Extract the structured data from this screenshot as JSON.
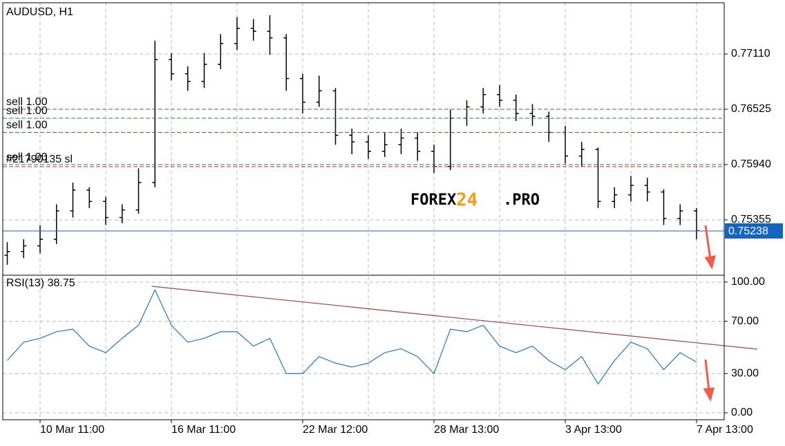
{
  "chart_data": [
    {
      "type": "ohlc",
      "title": "AUDUSD, H1",
      "color": "#000000",
      "categories": [
        null,
        null,
        "10 Mar 11:00",
        null,
        null,
        null,
        null,
        null,
        null,
        null,
        "16 Mar 11:00",
        null,
        null,
        null,
        null,
        null,
        null,
        null,
        "22 Mar 12:00",
        null,
        null,
        null,
        null,
        null,
        null,
        null,
        "28 Mar 13:00",
        null,
        null,
        null,
        null,
        null,
        null,
        null,
        "3 Apr 13:00",
        null,
        null,
        null,
        null,
        null,
        null,
        null,
        "7 Apr 13:00"
      ],
      "open": [
        0.7498,
        0.7502,
        0.7508,
        0.7515,
        0.7545,
        0.7567,
        0.7555,
        0.7538,
        0.7546,
        0.7575,
        0.7705,
        0.769,
        0.7682,
        0.77,
        0.7722,
        0.7738,
        0.7735,
        0.7728,
        0.7685,
        0.766,
        0.7672,
        0.7625,
        0.7618,
        0.7608,
        0.7615,
        0.7622,
        0.7608,
        0.7592,
        0.7643,
        0.7655,
        0.7668,
        0.7662,
        0.7648,
        0.7645,
        0.7628,
        0.7603,
        0.761,
        0.7555,
        0.7562,
        0.7572,
        0.7565,
        0.7537,
        0.7545
      ],
      "high": [
        0.7512,
        0.7515,
        0.753,
        0.7552,
        0.7575,
        0.757,
        0.756,
        0.7552,
        0.759,
        0.7725,
        0.7712,
        0.7698,
        0.7712,
        0.7732,
        0.775,
        0.7748,
        0.7752,
        0.7732,
        0.769,
        0.7688,
        0.7675,
        0.7632,
        0.7625,
        0.7628,
        0.7632,
        0.7628,
        0.7615,
        0.7652,
        0.7662,
        0.7675,
        0.7678,
        0.7668,
        0.7658,
        0.765,
        0.7635,
        0.7618,
        0.7612,
        0.757,
        0.7582,
        0.758,
        0.7568,
        0.7552,
        0.7548
      ],
      "low": [
        0.7488,
        0.7495,
        0.75,
        0.751,
        0.7538,
        0.7548,
        0.753,
        0.7532,
        0.7542,
        0.757,
        0.7683,
        0.7672,
        0.7675,
        0.7695,
        0.7715,
        0.7725,
        0.771,
        0.7672,
        0.7648,
        0.7655,
        0.7615,
        0.7605,
        0.76,
        0.7602,
        0.7605,
        0.7598,
        0.7585,
        0.7588,
        0.7635,
        0.7648,
        0.7655,
        0.764,
        0.7635,
        0.7618,
        0.7595,
        0.7592,
        0.7548,
        0.7548,
        0.7555,
        0.7555,
        0.753,
        0.753,
        0.7515
      ],
      "close": [
        0.7502,
        0.7508,
        0.7515,
        0.7545,
        0.7567,
        0.7555,
        0.7538,
        0.7546,
        0.7575,
        0.7705,
        0.769,
        0.7682,
        0.77,
        0.7722,
        0.7738,
        0.7735,
        0.7728,
        0.7685,
        0.766,
        0.7672,
        0.7625,
        0.7618,
        0.7608,
        0.7615,
        0.7622,
        0.7608,
        0.7592,
        0.7643,
        0.7655,
        0.7668,
        0.7662,
        0.7648,
        0.7645,
        0.7628,
        0.7603,
        0.761,
        0.7555,
        0.7562,
        0.7572,
        0.7565,
        0.7537,
        0.7545,
        0.7524
      ],
      "ylim": [
        0.7477,
        0.77644
      ],
      "yticks": [
        {
          "value": 0.7711,
          "label": "0.77110"
        },
        {
          "value": 0.76525,
          "label": "0.76525"
        },
        {
          "value": 0.7594,
          "label": "0.75940"
        },
        {
          "value": 0.75355,
          "label": "0.75355"
        }
      ],
      "grid": true,
      "price_line": {
        "value": 0.75238,
        "label": "0.75238",
        "color": "#1565c0"
      },
      "orders": [
        {
          "label": "sell 1.00",
          "value": 0.76525,
          "color": "#2e7d32"
        },
        {
          "label": "sell 1.00",
          "value": 0.7643,
          "color": "#2e7d32"
        },
        {
          "label": "sell 1.00",
          "value": 0.7628,
          "color": "#2e7d32"
        },
        {
          "label": "sell 1.00",
          "value": 0.7594,
          "color": "#2e7d32"
        },
        {
          "label": "#21790135 sl",
          "value": 0.75918,
          "color": "#c62828"
        }
      ],
      "watermark": [
        "FOREX",
        "24",
        ".PRO"
      ]
    },
    {
      "type": "line",
      "title": "RSI(13) 38.75",
      "color": "#1f77c4",
      "values": [
        40,
        54,
        57,
        62,
        64,
        51,
        46,
        57,
        67,
        94,
        67,
        54,
        57,
        62,
        62,
        51,
        57,
        30,
        30,
        43,
        38,
        35,
        38,
        46,
        49,
        43,
        30,
        64,
        62,
        67,
        51,
        46,
        51,
        40,
        33,
        43,
        22,
        40,
        54,
        49,
        33,
        46,
        38.75
      ],
      "ylim": [
        -5.3,
        104.2
      ],
      "yticks": [
        {
          "value": 100,
          "label": "100.00"
        },
        {
          "value": 70,
          "label": "70.00"
        },
        {
          "value": 30,
          "label": "30.00"
        },
        {
          "value": 0,
          "label": "0.00"
        }
      ],
      "grid": true,
      "trendline": {
        "x": [
          8.8,
          45.7
        ],
        "values": [
          96.8,
          48.7
        ],
        "color": "#a0524f"
      }
    }
  ]
}
